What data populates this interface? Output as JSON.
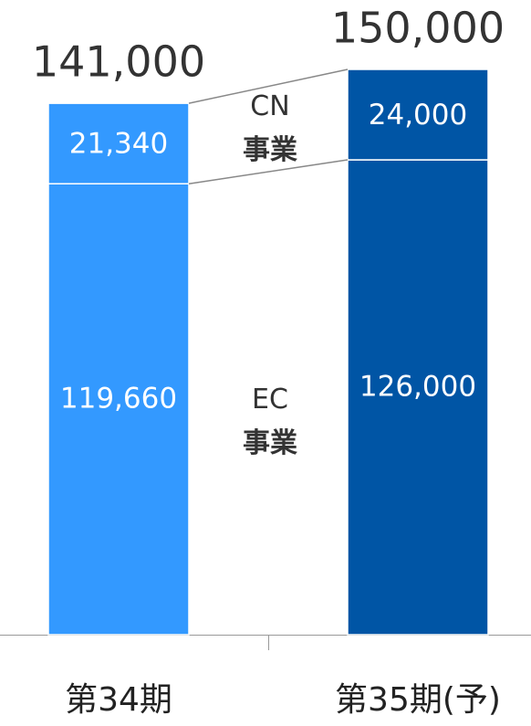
{
  "chart_data": {
    "type": "stacked_bar",
    "categories": [
      "第34期",
      "第35期(予)"
    ],
    "colors": [
      "#3399ff",
      "#0055a5"
    ],
    "series": [
      {
        "name": "EC\n事業",
        "values": [
          119660,
          126000
        ],
        "value_labels": [
          "119,660",
          "126,000"
        ]
      },
      {
        "name": "CN\n事業",
        "values": [
          21340,
          24000
        ],
        "value_labels": [
          "21,340",
          "24,000"
        ]
      }
    ],
    "totals": [
      141000,
      150000
    ],
    "total_labels": [
      "141,000",
      "150,000"
    ]
  }
}
